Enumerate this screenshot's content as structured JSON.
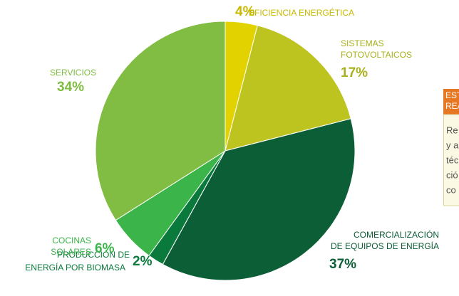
{
  "chart_data": {
    "type": "pie",
    "categories": [
      [
        "EFICIENCIA ENERGÉTICA"
      ],
      [
        "SISTEMAS",
        "FOTOVOLTAICOS"
      ],
      [
        "COMERCIALIZACIÓN",
        "DE EQUIPOS DE ENERGÍA"
      ],
      [
        "PRODUCCIÓN DE",
        "ENERGÍA POR BIOMASA"
      ],
      [
        "COCINAS",
        "SOLARES"
      ],
      [
        "SERVICIOS"
      ]
    ],
    "values": [
      4,
      17,
      37,
      2,
      6,
      34
    ],
    "value_labels": [
      "4%",
      "17%",
      "37%",
      "2%",
      "6%",
      "34%"
    ],
    "colors": [
      "#e2d300",
      "#bdc41f",
      "#0b5e35",
      "#0a7a3c",
      "#3bb54a",
      "#80bd42"
    ],
    "label_colors": [
      "#c9b800",
      "#a9b01a",
      "#0b5e35",
      "#0a7a3c",
      "#3bb54a",
      "#7fbd41"
    ]
  },
  "panel": {
    "header": [
      "EST",
      "REA"
    ],
    "body": [
      "Re",
      "y a",
      "téc",
      "ció",
      "co"
    ]
  }
}
